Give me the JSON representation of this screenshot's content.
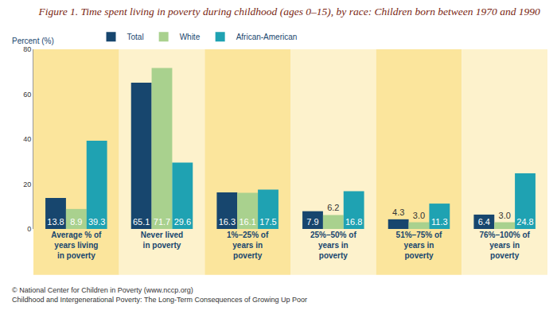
{
  "chart_data": {
    "type": "bar",
    "title": "Figure 1. Time spent living in poverty during childhood (ages 0–15), by race: Children born between 1970 and 1990",
    "ylabel": "Percent (%)",
    "categories": [
      "Average % of years living in poverty",
      "Never lived in poverty",
      "1%–25% of years in poverty",
      "25%–50% of years in poverty",
      "51%–75% of years in poverty",
      "76%–100% of years in poverty"
    ],
    "series": [
      {
        "name": "Total",
        "color": "#17466e",
        "values": [
          13.8,
          65.1,
          16.3,
          7.9,
          4.3,
          6.4
        ],
        "value_labels": [
          "13.8",
          "65.1",
          "16.3",
          "7.9",
          "4.3",
          "6.4"
        ]
      },
      {
        "name": "White",
        "color": "#a9d18e",
        "values": [
          8.9,
          71.7,
          16.1,
          6.2,
          3.0,
          3.0
        ],
        "value_labels": [
          "8.9",
          "71.7",
          "16.1",
          "6.2",
          "3.0",
          "3.0"
        ]
      },
      {
        "name": "African-American",
        "color": "#1fa2b2",
        "values": [
          39.3,
          29.6,
          17.5,
          16.8,
          11.3,
          24.8
        ],
        "value_labels": [
          "39.3",
          "29.6",
          "17.5",
          "16.8",
          "11.3",
          "24.8"
        ]
      }
    ],
    "ylim": [
      0,
      80
    ],
    "yticks": [
      0,
      20,
      40,
      60,
      80
    ],
    "grid": false,
    "legend": "top left",
    "data_labels": true,
    "annotations": [
      "© National Center for Children in Poverty (www.nccp.org)",
      "Childhood and Intergenerational Poverty: The Long-Term Consequences of Growing Up Poor"
    ]
  }
}
